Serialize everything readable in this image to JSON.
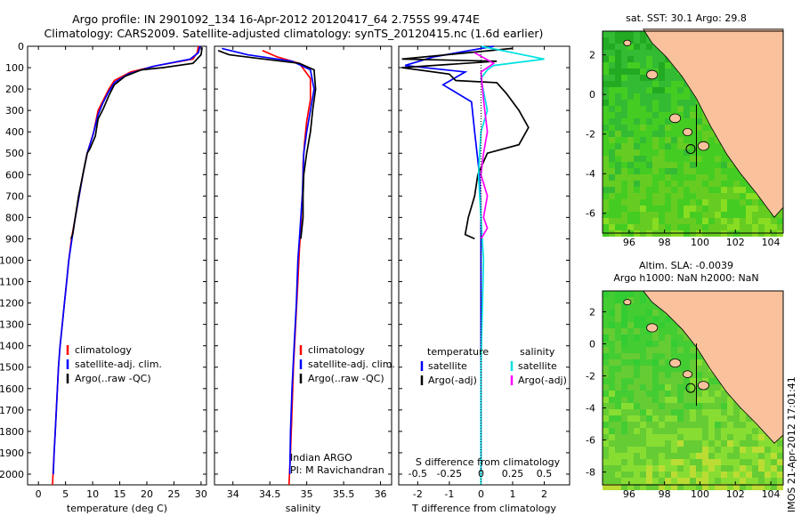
{
  "header": {
    "line1": "Argo profile: IN 2901092_134 16-Apr-2012 20120417_64 2.755S 99.474E",
    "line2": "Climatology: CARS2009. Satellite-adjusted climatology: synTS_20120415.nc (1.6d earlier)"
  },
  "colors": {
    "climatology": "#ff0000",
    "satellite": "#0000ff",
    "argo": "#000000",
    "salinity_satellite": "#00e0e0",
    "salinity_argo": "#ff00ff",
    "land": "#f9c29d",
    "ocean_green": "#33cc33"
  },
  "chart_data": [
    {
      "type": "line",
      "panel": "temperature",
      "xlabel": "temperature (deg C)",
      "ylabel": "",
      "xlim": [
        -2,
        31
      ],
      "ylim": [
        2050,
        0
      ],
      "xticks": [
        0,
        5,
        10,
        15,
        20,
        25,
        30
      ],
      "yticks": [
        0,
        100,
        200,
        300,
        400,
        500,
        600,
        700,
        800,
        900,
        1000,
        1100,
        1200,
        1300,
        1400,
        1500,
        1600,
        1700,
        1800,
        1900,
        2000
      ],
      "legend": [
        "climatology",
        "satellite-adj. clim.",
        "Argo(..raw -QC)"
      ],
      "series": [
        {
          "name": "climatology",
          "color": "#ff0000",
          "points": [
            [
              29.5,
              0
            ],
            [
              29.3,
              30
            ],
            [
              28.5,
              60
            ],
            [
              22,
              90
            ],
            [
              17,
              120
            ],
            [
              14,
              160
            ],
            [
              13,
              200
            ],
            [
              12,
              250
            ],
            [
              11,
              300
            ],
            [
              10.2,
              400
            ],
            [
              9,
              500
            ],
            [
              8.2,
              600
            ],
            [
              7.5,
              700
            ],
            [
              6.8,
              800
            ],
            [
              6.1,
              900
            ],
            [
              5.6,
              1000
            ],
            [
              5.2,
              1100
            ],
            [
              4.8,
              1200
            ],
            [
              4.4,
              1300
            ],
            [
              4.0,
              1400
            ],
            [
              3.7,
              1500
            ],
            [
              3.5,
              1600
            ],
            [
              3.3,
              1700
            ],
            [
              3.1,
              1800
            ],
            [
              2.9,
              1900
            ],
            [
              2.7,
              2000
            ],
            [
              2.6,
              2050
            ]
          ]
        },
        {
          "name": "satellite-adj. clim.",
          "color": "#0000ff",
          "points": [
            [
              29.8,
              0
            ],
            [
              29.5,
              30
            ],
            [
              28,
              60
            ],
            [
              21,
              95
            ],
            [
              16.5,
              130
            ],
            [
              14,
              170
            ],
            [
              12.8,
              220
            ],
            [
              11.8,
              270
            ],
            [
              11,
              320
            ],
            [
              10,
              420
            ],
            [
              9,
              500
            ],
            [
              8.2,
              600
            ],
            [
              7.5,
              700
            ],
            [
              6.8,
              800
            ],
            [
              6.2,
              900
            ],
            [
              5.6,
              1000
            ],
            [
              5.2,
              1100
            ],
            [
              4.8,
              1200
            ],
            [
              4.4,
              1300
            ],
            [
              4.0,
              1400
            ],
            [
              3.7,
              1500
            ],
            [
              3.5,
              1600
            ],
            [
              3.3,
              1700
            ],
            [
              3.1,
              1800
            ],
            [
              2.9,
              1900
            ],
            [
              2.75,
              2000
            ]
          ]
        },
        {
          "name": "Argo(..raw -QC)",
          "color": "#000000",
          "points": [
            [
              30.2,
              5
            ],
            [
              30,
              40
            ],
            [
              28.5,
              80
            ],
            [
              23,
              100
            ],
            [
              19,
              110
            ],
            [
              16,
              140
            ],
            [
              14,
              180
            ],
            [
              13,
              230
            ],
            [
              12,
              290
            ],
            [
              11,
              340
            ],
            [
              10.5,
              420
            ],
            [
              9.5,
              480
            ],
            [
              9,
              500
            ],
            [
              8.5,
              560
            ],
            [
              8.2,
              600
            ],
            [
              7.8,
              650
            ],
            [
              7.4,
              700
            ],
            [
              6.8,
              800
            ],
            [
              6.3,
              880
            ],
            [
              6.0,
              900
            ]
          ]
        }
      ]
    },
    {
      "type": "line",
      "panel": "salinity",
      "xlabel": "salinity",
      "xlim": [
        33.75,
        36.15
      ],
      "ylim": [
        2050,
        0
      ],
      "xticks": [
        34,
        34.5,
        35,
        35.5,
        36
      ],
      "legend": [
        "climatology",
        "satellite-adj. clim.",
        "Argo(..raw -QC)"
      ],
      "annotation": [
        "Indian ARGO",
        "PI: M Ravichandran"
      ],
      "series": [
        {
          "name": "climatology",
          "color": "#ff0000",
          "points": [
            [
              34.4,
              20
            ],
            [
              34.6,
              50
            ],
            [
              34.9,
              80
            ],
            [
              35.05,
              150
            ],
            [
              35.05,
              250
            ],
            [
              35.0,
              350
            ],
            [
              34.97,
              450
            ],
            [
              34.95,
              550
            ],
            [
              34.95,
              650
            ],
            [
              34.93,
              750
            ],
            [
              34.92,
              850
            ],
            [
              34.9,
              950
            ],
            [
              34.88,
              1100
            ],
            [
              34.85,
              1300
            ],
            [
              34.82,
              1500
            ],
            [
              34.8,
              1700
            ],
            [
              34.78,
              1900
            ],
            [
              34.76,
              2050
            ]
          ]
        },
        {
          "name": "satellite-adj. clim.",
          "color": "#0000ff",
          "points": [
            [
              33.85,
              10
            ],
            [
              34.2,
              40
            ],
            [
              34.8,
              70
            ],
            [
              35.05,
              110
            ],
            [
              35.1,
              200
            ],
            [
              35.05,
              300
            ],
            [
              35.0,
              400
            ],
            [
              34.96,
              500
            ],
            [
              34.95,
              600
            ],
            [
              34.94,
              700
            ],
            [
              34.92,
              800
            ],
            [
              34.9,
              900
            ],
            [
              34.88,
              1000
            ],
            [
              34.86,
              1200
            ],
            [
              34.83,
              1400
            ],
            [
              34.8,
              1600
            ],
            [
              34.78,
              1800
            ],
            [
              34.77,
              2000
            ]
          ]
        },
        {
          "name": "Argo(..raw -QC)",
          "color": "#000000",
          "points": [
            [
              33.8,
              20
            ],
            [
              33.95,
              40
            ],
            [
              34.3,
              55
            ],
            [
              34.9,
              80
            ],
            [
              35.1,
              110
            ],
            [
              35.12,
              200
            ],
            [
              35.08,
              300
            ],
            [
              35.05,
              400
            ],
            [
              35.0,
              500
            ],
            [
              34.96,
              600
            ],
            [
              34.95,
              700
            ],
            [
              34.95,
              800
            ],
            [
              34.92,
              900
            ]
          ]
        }
      ]
    },
    {
      "type": "line",
      "panel": "difference",
      "xlabel": "T difference from climatology",
      "xlabel_top": "S difference from climatology",
      "xlim": [
        -2.6,
        2.8
      ],
      "xlim_top": [
        -0.65,
        0.7
      ],
      "ylim": [
        2050,
        0
      ],
      "xticks": [
        -2,
        -1,
        0,
        1,
        2
      ],
      "xticks_top": [
        "-0.5",
        "-0.25",
        "0",
        "0.25",
        "0.5"
      ],
      "legend_temperature": {
        "title": "temperature",
        "items": [
          "satellite",
          "Argo(-adj)"
        ]
      },
      "legend_salinity": {
        "title": "salinity",
        "items": [
          "satellite",
          "Argo(-adj)"
        ]
      },
      "series": [
        {
          "name": "satellite",
          "group": "temperature",
          "color": "#0000ff",
          "points": [
            [
              0.4,
              0
            ],
            [
              -1.5,
              50
            ],
            [
              -2.4,
              90
            ],
            [
              -0.5,
              120
            ],
            [
              -1.2,
              180
            ],
            [
              -0.3,
              260
            ],
            [
              -0.2,
              400
            ],
            [
              -0.05,
              600
            ],
            [
              0,
              800
            ],
            [
              0,
              1200
            ],
            [
              0,
              2000
            ]
          ]
        },
        {
          "name": "Argo(-adj)",
          "group": "temperature",
          "color": "#000000",
          "points": [
            [
              1,
              10
            ],
            [
              -2.5,
              60
            ],
            [
              0.5,
              70
            ],
            [
              -2.5,
              100
            ],
            [
              -1,
              130
            ],
            [
              -0.8,
              160
            ],
            [
              0.5,
              170
            ],
            [
              0.8,
              220
            ],
            [
              1.2,
              300
            ],
            [
              1.5,
              380
            ],
            [
              1.2,
              460
            ],
            [
              0.2,
              500
            ],
            [
              -0.1,
              600
            ],
            [
              -0.2,
              700
            ],
            [
              -0.4,
              800
            ],
            [
              -0.5,
              880
            ],
            [
              -0.2,
              900
            ]
          ]
        },
        {
          "name": "satellite",
          "group": "salinity",
          "color": "#00e0e0",
          "points": [
            [
              0,
              0
            ],
            [
              0.5,
              60
            ],
            [
              0.1,
              90
            ],
            [
              0.05,
              110
            ],
            [
              0,
              150
            ],
            [
              0.05,
              300
            ],
            [
              0,
              400
            ],
            [
              -0.02,
              600
            ],
            [
              0,
              800
            ],
            [
              0.02,
              1000
            ],
            [
              0,
              1500
            ],
            [
              0,
              2050
            ]
          ]
        },
        {
          "name": "Argo(-adj)",
          "group": "salinity",
          "color": "#ff00ff",
          "points": [
            [
              -0.05,
              30
            ],
            [
              0.1,
              80
            ],
            [
              0,
              120
            ],
            [
              0.02,
              250
            ],
            [
              0.05,
              400
            ],
            [
              0.02,
              500
            ],
            [
              0,
              600
            ],
            [
              0.05,
              700
            ],
            [
              0.02,
              800
            ],
            [
              0.05,
              850
            ],
            [
              0,
              900
            ]
          ]
        }
      ]
    },
    {
      "type": "heatmap",
      "panel": "sst-map",
      "title": "sat. SST: 30.1  Argo: 29.8",
      "xticks": [
        96,
        98,
        100,
        102,
        104
      ],
      "yticks": [
        2,
        0,
        -2,
        -4,
        -6
      ],
      "xlim": [
        94.5,
        104.7
      ],
      "ylim": [
        -7,
        3.2
      ],
      "marker": [
        99.474,
        -2.755
      ]
    },
    {
      "type": "heatmap",
      "panel": "sla-map",
      "title": "Altim. SLA: -0.0039",
      "subtitle": "Argo h1000: NaN h2000: NaN",
      "xticks": [
        96,
        98,
        100,
        102,
        104
      ],
      "yticks": [
        2,
        0,
        -2,
        -4,
        -6,
        -8
      ],
      "xlim": [
        94.5,
        104.7
      ],
      "ylim": [
        -8.8,
        3.3
      ],
      "marker": [
        99.474,
        -2.755
      ]
    }
  ],
  "credit": "IMOS 21-Apr-2012 17:01:41"
}
